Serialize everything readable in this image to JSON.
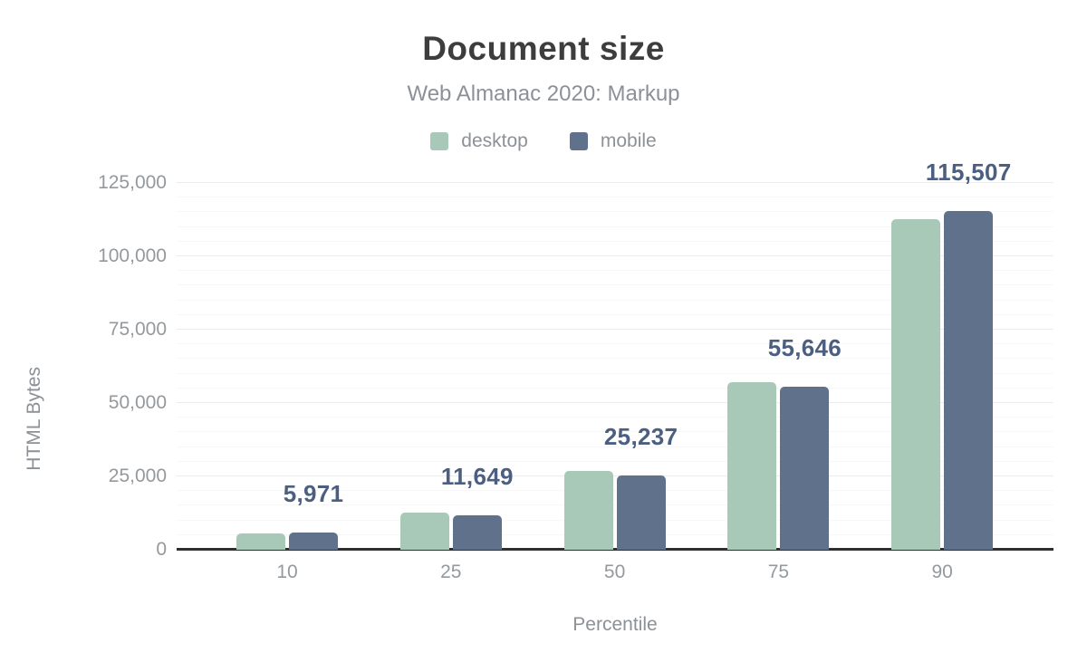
{
  "title": "Document size",
  "subtitle": "Web Almanac 2020: Markup",
  "legend": [
    {
      "label": "desktop",
      "color": "#a9c9b8"
    },
    {
      "label": "mobile",
      "color": "#5f718b"
    }
  ],
  "chart_data": {
    "type": "bar",
    "title": "Document size",
    "subtitle": "Web Almanac 2020: Markup",
    "xlabel": "Percentile",
    "ylabel": "HTML Bytes",
    "categories": [
      "10",
      "25",
      "50",
      "75",
      "90"
    ],
    "series": [
      {
        "name": "desktop",
        "color": "#a9c9b8",
        "values": [
          5700,
          12700,
          26800,
          57200,
          112700
        ],
        "note": "values estimated from bar heights; not labeled on chart"
      },
      {
        "name": "mobile",
        "color": "#5f718b",
        "values": [
          5971,
          11649,
          25237,
          55646,
          115507
        ]
      }
    ],
    "data_labels": {
      "labeled_series": "mobile",
      "values": [
        "5,971",
        "11,649",
        "25,237",
        "55,646",
        "115,507"
      ],
      "color": "#4c5f80"
    },
    "ylim": [
      0,
      125000
    ],
    "yticks": [
      0,
      25000,
      50000,
      75000,
      100000,
      125000
    ],
    "ytick_labels": [
      "0",
      "25,000",
      "50,000",
      "75,000",
      "100,000",
      "125,000"
    ],
    "grid": {
      "on": true,
      "major_step": 25000,
      "minor_step": 5000
    },
    "legend_position": "top",
    "axis_color": "#2f2f2f",
    "text_color": "#8b9197",
    "title_color": "#3d3d3d"
  }
}
